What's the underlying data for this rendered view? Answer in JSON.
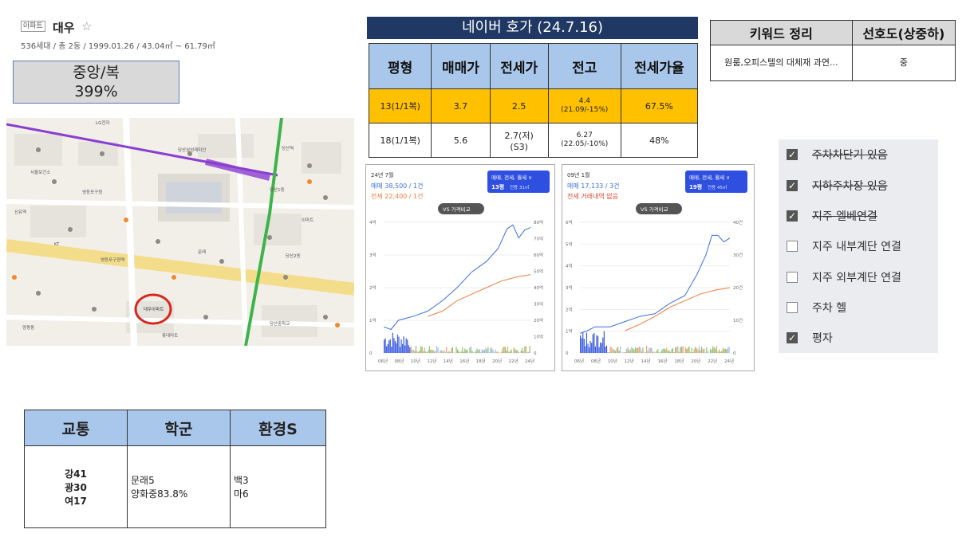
{
  "header": {
    "tag": "아파트",
    "name": "대우",
    "star": "☆",
    "info": "536세대 / 총 2동 / 1999.01.26 / 43.04㎡ ~ 61.79㎡"
  },
  "classification": {
    "line1": "중앙/복",
    "line2": "399%"
  },
  "map": {
    "marker_label": "대우아파트",
    "labels": [
      "당산1동",
      "LG전자",
      "당산역",
      "당산삼성래미안",
      "서울보건소",
      "영등포구청",
      "대우아파트",
      "당산2동",
      "문래",
      "선유역",
      "영등포구청역",
      "양평동",
      "당산중학교",
      "이마트",
      "KT",
      "롯데마트"
    ]
  },
  "hoga": {
    "title": "네이버 호가 (24.7.16)",
    "headers": [
      "평형",
      "매매가",
      "전세가",
      "전고",
      "전세가율"
    ],
    "rows": [
      {
        "type": "13(1/1복)",
        "sale": "3.7",
        "jeonse": "2.5",
        "peak": "4.4",
        "peak_note": "(21.09/-15%)",
        "ratio": "67.5%",
        "highlight": true
      },
      {
        "type": "18(1/1복)",
        "sale": "5.6",
        "jeonse": "2.7(저)",
        "jeonse_note": "(S3)",
        "peak": "6.27",
        "peak_note": "(22.05/-10%)",
        "ratio": "48%",
        "highlight": false
      }
    ]
  },
  "keyword": {
    "headers": [
      "키워드 정리",
      "선호도(상중하)"
    ],
    "row": {
      "keyword": "원룸,오피스텔의 대체재 과연...",
      "preference": "중"
    }
  },
  "charts": [
    {
      "period": "24년 7월",
      "sale_text": "매매 38,500 / 1건",
      "jeonse_text": "전세 22,400 / 1건",
      "filter": "매매, 전세, 월세 ∨",
      "size": "13평",
      "size_note": "전용 31㎡",
      "compare": "VS 가격비교",
      "y_left": [
        "4억",
        "3억",
        "2억",
        "1억",
        "0"
      ],
      "y_right": [
        "80억",
        "70억",
        "60억",
        "50억",
        "40억",
        "30억",
        "20억",
        "10억",
        "0"
      ],
      "x_labels": [
        "06년",
        "08년",
        "10년",
        "12년",
        "14년",
        "16년",
        "18년",
        "20년",
        "22년",
        "24년"
      ]
    },
    {
      "period": "09년 1월",
      "sale_text": "매매 17,133 / 3건",
      "jeonse_text": "전세 거래내역 없음",
      "filter": "매매, 전세, 월세 ∨",
      "size": "19평",
      "size_note": "전용 45㎡",
      "compare": "VS 가격비교",
      "y_left": [
        "6억",
        "5억",
        "4억",
        "3억",
        "2억",
        "1억",
        "0"
      ],
      "y_right": [
        "40건",
        "30건",
        "20건",
        "10건",
        "0"
      ],
      "x_labels": [
        "06년",
        "08년",
        "10년",
        "12년",
        "14년",
        "16년",
        "18년",
        "20년",
        "22년",
        "24년"
      ]
    }
  ],
  "checklist": [
    {
      "label": "주차차단기 있음",
      "checked": true,
      "strike": true
    },
    {
      "label": "지하주차장 있음",
      "checked": true,
      "strike": true
    },
    {
      "label": "지주 엘베연결",
      "checked": true,
      "strike": true
    },
    {
      "label": "지주 내부계단 연결",
      "checked": false,
      "strike": false
    },
    {
      "label": "지주 외부계단 연결",
      "checked": false,
      "strike": false
    },
    {
      "label": "주차 헬",
      "checked": false,
      "strike": false
    },
    {
      "label": "평자",
      "checked": true,
      "strike": false
    }
  ],
  "bottom": {
    "headers": [
      "교통",
      "학군",
      "환경S"
    ],
    "transport": [
      "강41",
      "광30",
      "여17"
    ],
    "school": [
      "문래5",
      "양화중83.8%"
    ],
    "environment": [
      "백3",
      "마6"
    ]
  },
  "colors": {
    "navy": "#1f3864",
    "header_blue": "#a9c7ea",
    "highlight": "#ffc000",
    "sale_line": "#3b6fe0",
    "jeonse_line": "#f07a3a",
    "subway_purple": "#8a3fd1",
    "subway_green": "#3cb44b"
  }
}
